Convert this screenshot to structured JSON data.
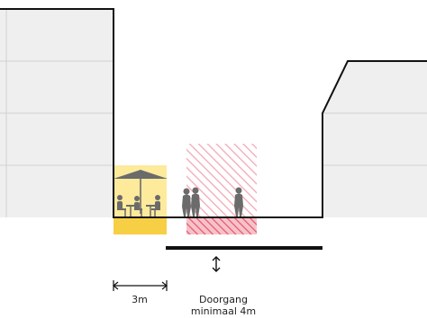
{
  "labels": {
    "terrace_width": "3m",
    "passage_line1": "Doorgang",
    "passage_line2": "minimaal 4m"
  },
  "colors": {
    "building_fill": "#efefef",
    "building_lines": "#d2d2d2",
    "outline": "#111111",
    "terrace_yellow": "#fdea9b",
    "terrace_strip": "#f7cf45",
    "hatch_red": "#e8556b",
    "silhouette": "#6b6b6b"
  }
}
